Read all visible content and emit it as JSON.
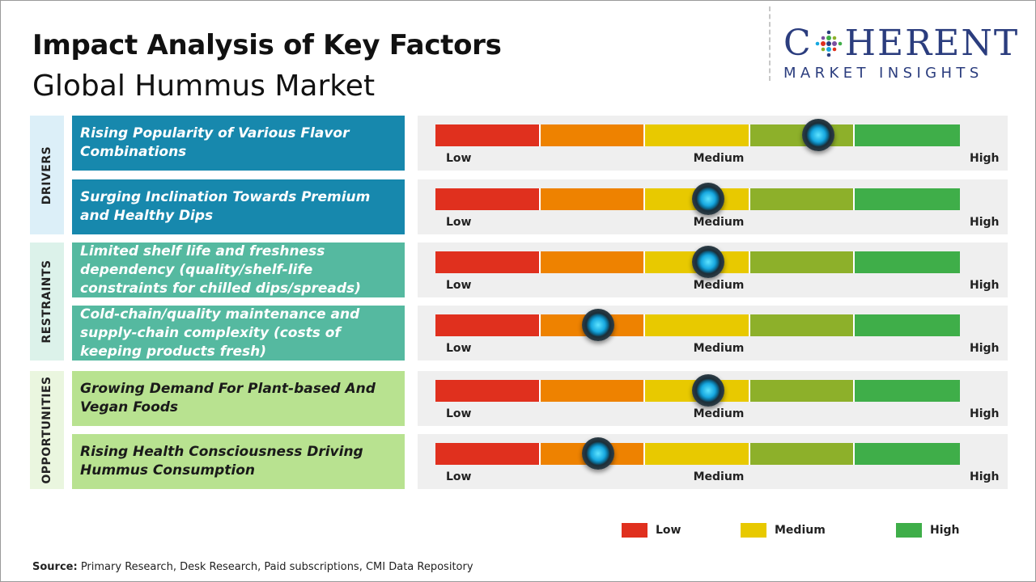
{
  "header": {
    "title": "Impact Analysis of Key Factors",
    "subtitle": "Global Hummus Market"
  },
  "logo": {
    "main_left": "C",
    "main_right": "HERENT",
    "sub": "MARKET INSIGHTS",
    "brand_color": "#2b3d7e"
  },
  "categories": [
    {
      "label": "DRIVERS",
      "bg": "#dceff8"
    },
    {
      "label": "RESTRAINTS",
      "bg": "#dcf2ea"
    },
    {
      "label": "OPPORTUNITIES",
      "bg": "#eaf6df"
    }
  ],
  "scale": {
    "labels": [
      "Low",
      "Medium",
      "High"
    ],
    "segment_colors": [
      "#e0301e",
      "#ee8200",
      "#e8c900",
      "#8db02a",
      "#3fae49"
    ]
  },
  "chart_data": {
    "type": "table",
    "scale": [
      "Low",
      "Medium",
      "High"
    ],
    "factors": [
      {
        "category": "DRIVERS",
        "text": "Rising Popularity of Various Flavor Combinations",
        "impact": 0.73
      },
      {
        "category": "DRIVERS",
        "text": "Surging Inclination Towards Premium and Healthy Dips",
        "impact": 0.52
      },
      {
        "category": "RESTRAINTS",
        "text": "Limited shelf life and freshness dependency (quality/shelf-life constraints for chilled dips/spreads)",
        "impact": 0.52
      },
      {
        "category": "RESTRAINTS",
        "text": "Cold-chain/quality maintenance and supply-chain complexity (costs of keeping products fresh)",
        "impact": 0.31
      },
      {
        "category": "OPPORTUNITIES",
        "text": "Growing Demand For Plant-based And Vegan Foods",
        "impact": 0.52
      },
      {
        "category": "OPPORTUNITIES",
        "text": "Rising Health Consciousness Driving Hummus Consumption",
        "impact": 0.31
      }
    ]
  },
  "factor_styles": [
    {
      "bg": "#1788ad",
      "color": "#ffffff"
    },
    {
      "bg": "#1788ad",
      "color": "#ffffff"
    },
    {
      "bg": "#55b9a0",
      "color": "#ffffff"
    },
    {
      "bg": "#55b9a0",
      "color": "#ffffff"
    },
    {
      "bg": "#b8e290",
      "color": "#1a1a1a"
    },
    {
      "bg": "#b8e290",
      "color": "#1a1a1a"
    }
  ],
  "legend": [
    {
      "label": "Low",
      "color": "#e0301e"
    },
    {
      "label": "Medium",
      "color": "#e8c900"
    },
    {
      "label": "High",
      "color": "#3fae49"
    }
  ],
  "footer": {
    "source_label": "Source:",
    "source_text": " Primary Research, Desk Research, Paid subscriptions, CMI Data Repository"
  }
}
